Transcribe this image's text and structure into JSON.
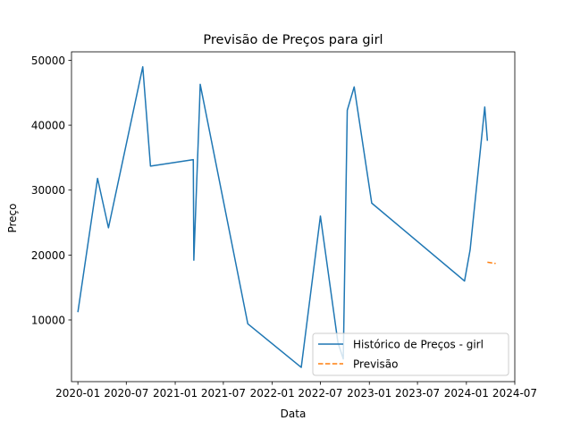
{
  "chart_data": {
    "type": "line",
    "title": "Previsão de Preços para girl",
    "xlabel": "Data",
    "ylabel": "Preço",
    "xlim": [
      "2019-12-08",
      "2024-07-01"
    ],
    "ylim": [
      500,
      51300
    ],
    "x_ticks": [
      {
        "date": "2020-01-01",
        "label": "2020-01"
      },
      {
        "date": "2020-07-01",
        "label": "2020-07"
      },
      {
        "date": "2021-01-01",
        "label": "2021-01"
      },
      {
        "date": "2021-07-01",
        "label": "2021-07"
      },
      {
        "date": "2022-01-01",
        "label": "2022-01"
      },
      {
        "date": "2022-07-01",
        "label": "2022-07"
      },
      {
        "date": "2023-01-01",
        "label": "2023-01"
      },
      {
        "date": "2023-07-01",
        "label": "2023-07"
      },
      {
        "date": "2024-01-01",
        "label": "2024-01"
      },
      {
        "date": "2024-07-01",
        "label": "2024-07"
      }
    ],
    "y_ticks": [
      {
        "value": 10000,
        "label": "10000"
      },
      {
        "value": 20000,
        "label": "20000"
      },
      {
        "value": 30000,
        "label": "30000"
      },
      {
        "value": 40000,
        "label": "40000"
      },
      {
        "value": 50000,
        "label": "50000"
      }
    ],
    "legend_position": "lower-right",
    "grid": false,
    "series": [
      {
        "name": "Histórico de Preços - girl",
        "color": "#1f77b4",
        "style": "solid",
        "points": [
          {
            "x": "2020-01-01",
            "y": 11200
          },
          {
            "x": "2020-03-15",
            "y": 31800
          },
          {
            "x": "2020-04-25",
            "y": 24200
          },
          {
            "x": "2020-09-01",
            "y": 49000
          },
          {
            "x": "2020-09-30",
            "y": 33700
          },
          {
            "x": "2021-03-10",
            "y": 34700
          },
          {
            "x": "2021-03-12",
            "y": 19200
          },
          {
            "x": "2021-04-02",
            "y": 42500
          },
          {
            "x": "2021-04-05",
            "y": 46300
          },
          {
            "x": "2021-10-01",
            "y": 9400
          },
          {
            "x": "2022-04-20",
            "y": 2700
          },
          {
            "x": "2022-07-01",
            "y": 26000
          },
          {
            "x": "2022-09-05",
            "y": 6500
          },
          {
            "x": "2022-09-25",
            "y": 4000
          },
          {
            "x": "2022-10-10",
            "y": 42300
          },
          {
            "x": "2022-11-05",
            "y": 45900
          },
          {
            "x": "2023-01-10",
            "y": 28000
          },
          {
            "x": "2023-12-25",
            "y": 16000
          },
          {
            "x": "2024-01-15",
            "y": 20800
          },
          {
            "x": "2024-03-10",
            "y": 42800
          },
          {
            "x": "2024-03-20",
            "y": 37600
          }
        ]
      },
      {
        "name": "Previsão",
        "color": "#ff7f0e",
        "style": "dashed",
        "points": [
          {
            "x": "2024-03-20",
            "y": 18900
          },
          {
            "x": "2024-04-20",
            "y": 18700
          }
        ]
      }
    ]
  }
}
